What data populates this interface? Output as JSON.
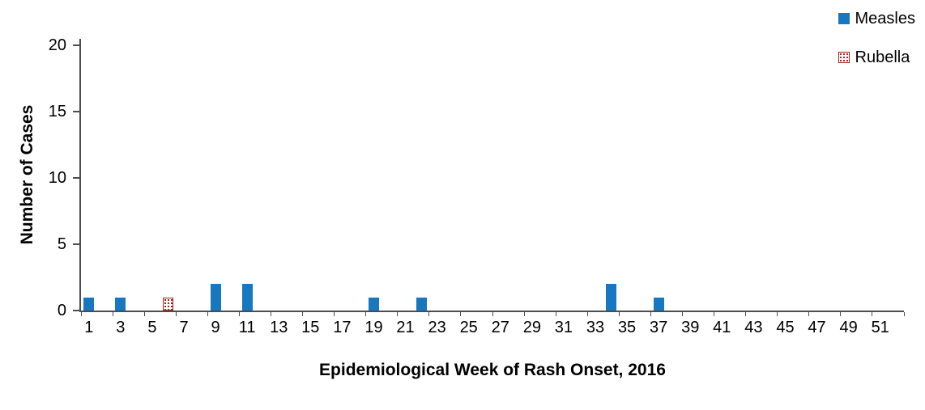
{
  "chart_data": {
    "type": "bar",
    "title": "",
    "xlabel": "Epidemiological Week of Rash Onset, 2016",
    "ylabel": "Number of Cases",
    "x_axis": {
      "weeks": 52,
      "tick_labels": [
        1,
        3,
        5,
        7,
        9,
        11,
        13,
        15,
        17,
        19,
        21,
        23,
        25,
        27,
        29,
        31,
        33,
        35,
        37,
        39,
        41,
        43,
        45,
        47,
        49,
        51
      ]
    },
    "y_axis": {
      "ticks": [
        0,
        5,
        10,
        15,
        20
      ],
      "lim": [
        0,
        20
      ]
    },
    "grid": false,
    "legend_position": "top-right",
    "series": [
      {
        "name": "Measles",
        "color": "#1777c0",
        "fill": "solid",
        "points": [
          {
            "week": 1,
            "cases": 1
          },
          {
            "week": 3,
            "cases": 1
          },
          {
            "week": 9,
            "cases": 2
          },
          {
            "week": 11,
            "cases": 2
          },
          {
            "week": 19,
            "cases": 1
          },
          {
            "week": 22,
            "cases": 1
          },
          {
            "week": 34,
            "cases": 2
          },
          {
            "week": 37,
            "cases": 1
          }
        ]
      },
      {
        "name": "Rubella",
        "color": "#a8231a",
        "fill": "dots",
        "points": [
          {
            "week": 6,
            "cases": 1
          }
        ]
      }
    ]
  }
}
